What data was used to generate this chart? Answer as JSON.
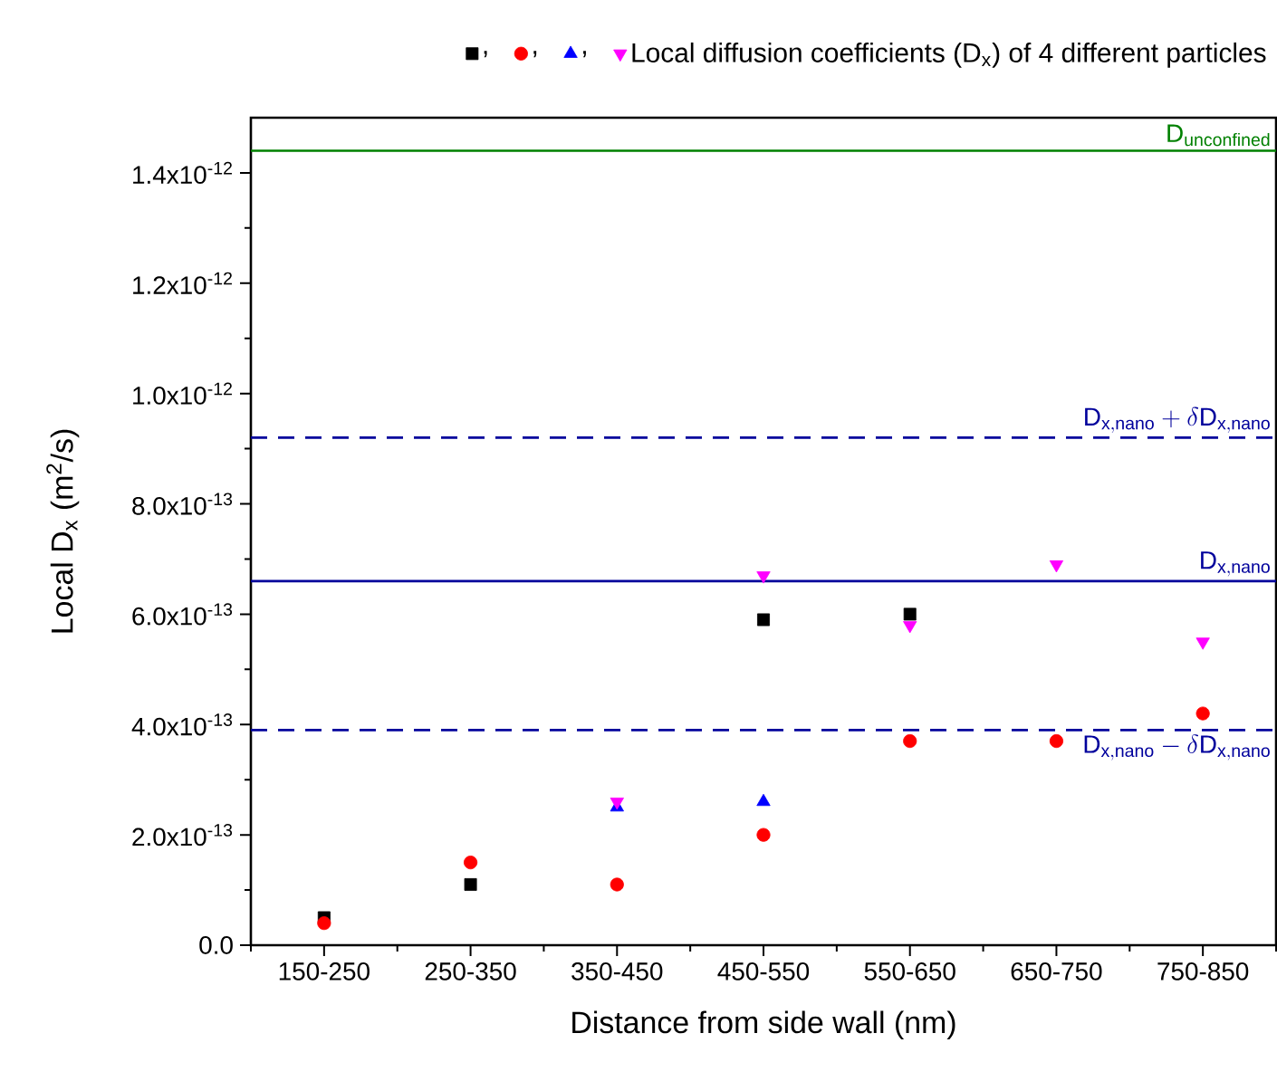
{
  "chart_data": {
    "type": "scatter",
    "xlabel": "Distance from side wall (nm)",
    "ylabel": "Local D$_{x}$ (m$^{2}$/s)",
    "categories": [
      "150-250",
      "250-350",
      "350-450",
      "450-550",
      "550-650",
      "650-750",
      "750-850"
    ],
    "ylim": [
      0,
      1.5e-12
    ],
    "yticks": [
      {
        "value": 0,
        "label": "0.0"
      },
      {
        "value": 2e-13,
        "label": "2.0x10$^{-13}$"
      },
      {
        "value": 4e-13,
        "label": "4.0x10$^{-13}$"
      },
      {
        "value": 6e-13,
        "label": "6.0x10$^{-13}$"
      },
      {
        "value": 8e-13,
        "label": "8.0x10$^{-13}$"
      },
      {
        "value": 1e-12,
        "label": "1.0x10$^{-12}$"
      },
      {
        "value": 1.2e-12,
        "label": "1.2x10$^{-12}$"
      },
      {
        "value": 1.4e-12,
        "label": "1.4x10$^{-12}$"
      }
    ],
    "series": [
      {
        "name": ",",
        "color": "#000000",
        "marker": "square",
        "values": [
          5e-14,
          1.1e-13,
          null,
          5.9e-13,
          6e-13,
          null,
          null
        ]
      },
      {
        "name": ",",
        "color": "#ff0000",
        "marker": "circle",
        "values": [
          4e-14,
          1.5e-13,
          1.1e-13,
          2e-13,
          3.7e-13,
          3.7e-13,
          4.2e-13
        ]
      },
      {
        "name": ",",
        "color": "#0000ff",
        "marker": "triangle",
        "values": [
          null,
          null,
          2.5e-13,
          2.6e-13,
          null,
          null,
          null
        ]
      },
      {
        "name": "Local diffusion coefficients (D$_{x}$) of 4 different particles",
        "color": "#ff00ff",
        "marker": "triangle down",
        "values": [
          null,
          null,
          2.6e-13,
          6.7e-13,
          5.8e-13,
          6.9e-13,
          5.5e-13
        ]
      }
    ],
    "ref_lines": [
      {
        "axis": "y",
        "value": 1.44e-12,
        "label": "\\mathrm{D}_{\\mathrm{unconfined}}",
        "color": "#008000",
        "line_style": "solid"
      },
      {
        "axis": "y",
        "value": 9.2e-13,
        "label": "\\mathrm{D}_{\\mathrm{x,nano}}+\\delta\\mathrm{D}_{\\mathrm{x,nano}}",
        "color": "#00009c",
        "line_style": "dashed"
      },
      {
        "axis": "y",
        "value": 6.6e-13,
        "label": "\\mathrm{D}_{\\mathrm{x,nano}}",
        "color": "#00009c",
        "line_style": "solid"
      },
      {
        "axis": "y",
        "value": 3.9e-13,
        "label": "\\mathrm{D}_{\\mathrm{x,nano}}-\\delta\\mathrm{D}_{\\mathrm{x,nano}}",
        "color": "#00009c",
        "line_style": "dashed"
      }
    ],
    "legend": "top right",
    "grid": false
  }
}
